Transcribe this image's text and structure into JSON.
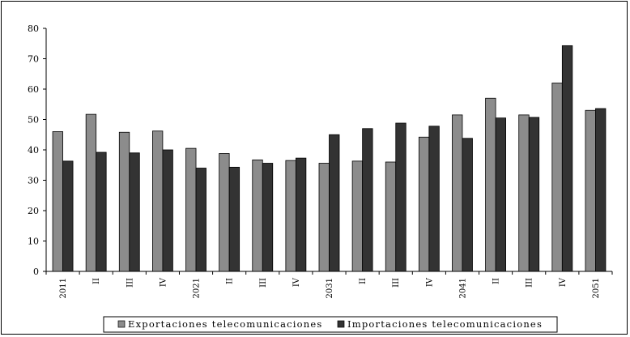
{
  "chart_data": {
    "type": "bar",
    "categories": [
      "2011",
      "II",
      "III",
      "IV",
      "2021",
      "II",
      "III",
      "IV",
      "2031",
      "II",
      "III",
      "IV",
      "2041",
      "II",
      "III",
      "IV",
      "2051"
    ],
    "series": [
      {
        "name": "Exportaciones telecomunicaciones",
        "color": "#8c8c8c",
        "values": [
          46.0,
          51.7,
          45.8,
          46.2,
          40.5,
          38.8,
          36.7,
          36.5,
          35.6,
          36.3,
          36.0,
          44.2,
          51.5,
          57.0,
          51.5,
          62.0,
          53.0
        ]
      },
      {
        "name": "Importaciones telecomunicaciones",
        "color": "#333333",
        "values": [
          36.3,
          39.2,
          39.0,
          40.0,
          34.0,
          34.3,
          35.6,
          37.3,
          45.0,
          47.0,
          48.8,
          47.8,
          43.8,
          50.5,
          50.7,
          74.3,
          53.6
        ]
      }
    ],
    "ylim": [
      0,
      80
    ],
    "yticks": [
      0,
      10,
      20,
      30,
      40,
      50,
      60,
      70,
      80
    ],
    "grid": false,
    "legend_position": "bottom",
    "xlabel": "",
    "ylabel": "",
    "title": ""
  }
}
